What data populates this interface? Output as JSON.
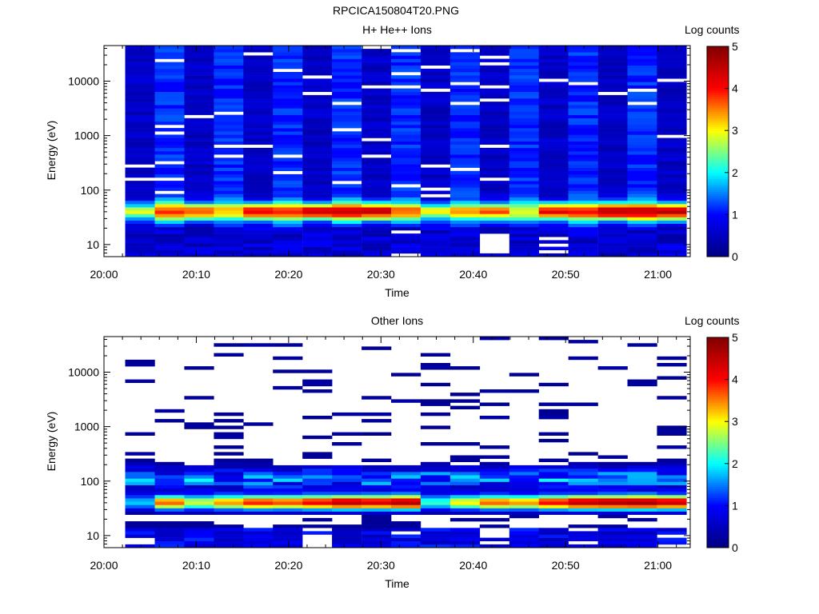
{
  "figure": {
    "title": "RPCICA150804T20.PNG"
  },
  "panels": [
    {
      "title": "H+ He++ Ions",
      "ylabel": "Energy (eV)",
      "xlabel": "Time",
      "colorbar_label": "Log counts"
    },
    {
      "title": "Other Ions",
      "ylabel": "Energy (eV)",
      "xlabel": "Time",
      "colorbar_label": "Log counts"
    }
  ],
  "colors": {
    "scale": [
      "#000080",
      "#0000ff",
      "#00ffff",
      "#ffff00",
      "#ff0000",
      "#800000"
    ],
    "empty": "#ffffff",
    "axes": "#000000"
  },
  "chart_data": [
    {
      "type": "heatmap",
      "title": "H+ He++ Ions",
      "xlabel": "Time",
      "ylabel": "Energy (eV)",
      "yscale": "log",
      "ylim_ev": [
        6,
        45000
      ],
      "x_ticks": [
        "20:00",
        "20:10",
        "20:20",
        "20:30",
        "20:40",
        "20:50",
        "21:00"
      ],
      "xlim_minutes_after_20_00": [
        0,
        63.5
      ],
      "y_ticks": [
        "10",
        "100",
        "1000",
        "10000"
      ],
      "colorbar": {
        "label": "Log counts",
        "range": [
          0,
          5
        ],
        "ticks": [
          "0",
          "1",
          "2",
          "3",
          "4",
          "5"
        ]
      },
      "time_bins_start_minutes": [
        2.3,
        5.5,
        8.7,
        11.9,
        15.1,
        18.3,
        21.5,
        24.7,
        27.9,
        31.1,
        34.3,
        37.5,
        40.7,
        43.9,
        47.1,
        50.3,
        53.5,
        56.7,
        59.9
      ],
      "time_bin_width_minutes": 3.2,
      "peak_band_ev": [
        30,
        55
      ],
      "peak_log_counts": [
        2.3,
        2.8,
        3.2,
        2.2,
        3.6,
        2.7,
        3.8,
        3.3,
        3.9,
        2.5,
        2.4,
        2.2,
        3.1,
        1.9,
        3.6,
        2.9,
        4.0,
        3.3,
        4.1
      ]
    },
    {
      "type": "heatmap",
      "title": "Other Ions",
      "xlabel": "Time",
      "ylabel": "Energy (eV)",
      "yscale": "log",
      "ylim_ev": [
        6,
        45000
      ],
      "x_ticks": [
        "20:00",
        "20:10",
        "20:20",
        "20:30",
        "20:40",
        "20:50",
        "21:00"
      ],
      "xlim_minutes_after_20_00": [
        0,
        63.5
      ],
      "y_ticks": [
        "10",
        "100",
        "1000",
        "10000"
      ],
      "colorbar": {
        "label": "Log counts",
        "range": [
          0,
          5
        ],
        "ticks": [
          "0",
          "1",
          "2",
          "3",
          "4",
          "5"
        ]
      },
      "time_bins_start_minutes": [
        2.3,
        5.5,
        8.7,
        11.9,
        15.1,
        18.3,
        21.5,
        24.7,
        27.9,
        31.1,
        34.3,
        37.5,
        40.7,
        43.9,
        47.1,
        50.3,
        53.5,
        56.7,
        59.9
      ],
      "time_bin_width_minutes": 3.2,
      "peak_band_ev": [
        30,
        55
      ],
      "peak_log_counts": [
        1.8,
        3.6,
        2.8,
        3.4,
        3.9,
        3.7,
        4.1,
        4.5,
        4.3,
        4.6,
        2.2,
        3.0,
        3.6,
        3.4,
        4.0,
        4.5,
        4.6,
        4.7,
        4.4
      ]
    }
  ]
}
